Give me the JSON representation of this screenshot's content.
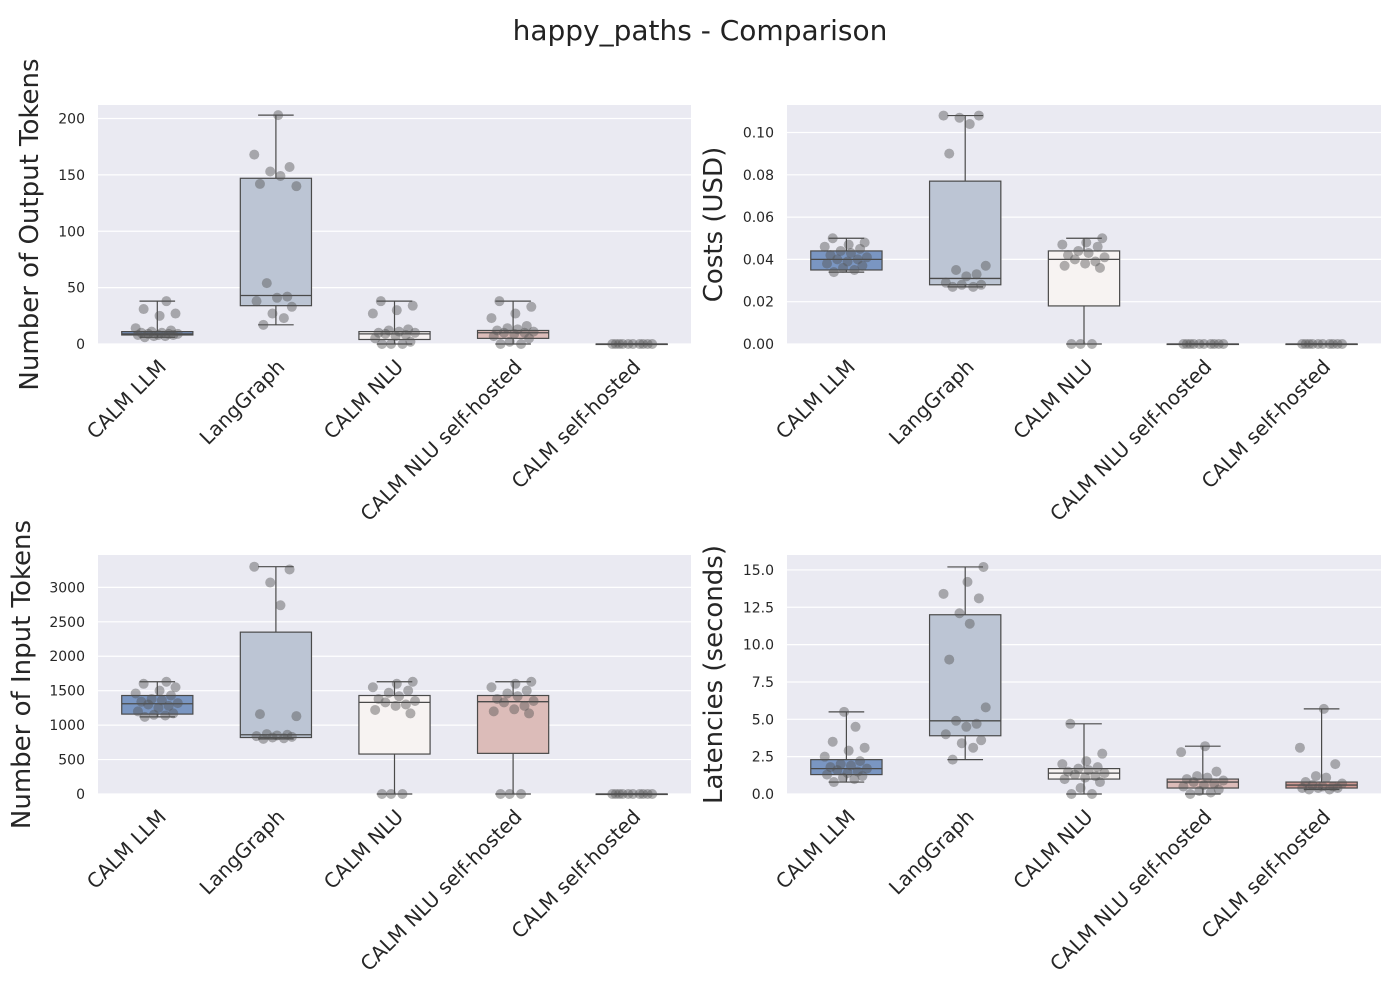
{
  "figure_title": "happy_paths - Comparison",
  "chart_data": [
    {
      "type": "box",
      "ylabel": "Number of Output Tokens",
      "ylim": [
        0,
        212
      ],
      "yticks": [
        0,
        50,
        100,
        150,
        200
      ],
      "categories": [
        "CALM LLM",
        "LangGraph",
        "CALM NLU",
        "CALM NLU self-hosted",
        "CALM self-hosted"
      ],
      "colors": [
        "#7a96c2",
        "#bcc5d4",
        "#f7f3f2",
        "#dcbcb9",
        "#d19b95"
      ],
      "boxes": [
        {
          "whisker_low": 6,
          "q1": 8,
          "median": 9,
          "q3": 11,
          "whisker_high": 38
        },
        {
          "whisker_low": 17,
          "q1": 34,
          "median": 43,
          "q3": 147,
          "whisker_high": 203
        },
        {
          "whisker_low": 0,
          "q1": 4,
          "median": 9,
          "q3": 11,
          "whisker_high": 38
        },
        {
          "whisker_low": 0,
          "q1": 5,
          "median": 10,
          "q3": 12,
          "whisker_high": 38
        },
        {
          "whisker_low": 0,
          "q1": 0,
          "median": 0,
          "q3": 0,
          "whisker_high": 0
        }
      ],
      "points": [
        [
          6,
          7,
          7,
          8,
          8,
          8,
          9,
          9,
          9,
          10,
          10,
          11,
          12,
          14,
          25,
          27,
          31,
          38
        ],
        [
          17,
          23,
          27,
          33,
          38,
          41,
          42,
          54,
          140,
          142,
          149,
          153,
          157,
          168,
          203
        ],
        [
          0,
          0,
          0,
          2,
          5,
          7,
          8,
          9,
          10,
          10,
          11,
          12,
          13,
          27,
          30,
          34,
          38
        ],
        [
          0,
          0,
          2,
          5,
          7,
          9,
          10,
          10,
          11,
          12,
          13,
          14,
          16,
          23,
          27,
          33,
          38
        ],
        [
          0,
          0,
          0,
          0,
          0,
          0,
          0,
          0,
          0,
          0
        ]
      ]
    },
    {
      "type": "box",
      "ylabel": "Costs (USD)",
      "ylim": [
        0,
        0.113
      ],
      "yticks": [
        0.0,
        0.02,
        0.04,
        0.06,
        0.08,
        0.1
      ],
      "ytick_labels": [
        "0.00",
        "0.02",
        "0.04",
        "0.06",
        "0.08",
        "0.10"
      ],
      "categories": [
        "CALM LLM",
        "LangGraph",
        "CALM NLU",
        "CALM NLU self-hosted",
        "CALM self-hosted"
      ],
      "colors": [
        "#7a96c2",
        "#bcc5d4",
        "#f7f3f2",
        "#dcbcb9",
        "#d19b95"
      ],
      "boxes": [
        {
          "whisker_low": 0.034,
          "q1": 0.035,
          "median": 0.04,
          "q3": 0.044,
          "whisker_high": 0.05
        },
        {
          "whisker_low": 0.027,
          "q1": 0.028,
          "median": 0.031,
          "q3": 0.077,
          "whisker_high": 0.108
        },
        {
          "whisker_low": 0.0,
          "q1": 0.018,
          "median": 0.04,
          "q3": 0.044,
          "whisker_high": 0.05
        },
        {
          "whisker_low": 0.0,
          "q1": 0.0,
          "median": 0.0,
          "q3": 0.0,
          "whisker_high": 0.0
        },
        {
          "whisker_low": 0.0,
          "q1": 0.0,
          "median": 0.0,
          "q3": 0.0,
          "whisker_high": 0.0
        }
      ],
      "points": [
        [
          0.034,
          0.035,
          0.036,
          0.037,
          0.038,
          0.039,
          0.04,
          0.04,
          0.041,
          0.042,
          0.043,
          0.044,
          0.045,
          0.046,
          0.047,
          0.048,
          0.05
        ],
        [
          0.027,
          0.027,
          0.028,
          0.028,
          0.029,
          0.032,
          0.033,
          0.035,
          0.037,
          0.09,
          0.104,
          0.107,
          0.108,
          0.108
        ],
        [
          0.0,
          0.0,
          0.0,
          0.036,
          0.037,
          0.038,
          0.039,
          0.04,
          0.041,
          0.042,
          0.043,
          0.044,
          0.046,
          0.047,
          0.048,
          0.05
        ],
        [
          0.0,
          0.0,
          0.0,
          0.0,
          0.0,
          0.0,
          0.0,
          0.0,
          0.0,
          0.0
        ],
        [
          0.0,
          0.0,
          0.0,
          0.0,
          0.0,
          0.0,
          0.0,
          0.0,
          0.0,
          0.0
        ]
      ]
    },
    {
      "type": "box",
      "ylabel": "Number of Input Tokens",
      "ylim": [
        0,
        3470
      ],
      "yticks": [
        0,
        500,
        1000,
        1500,
        2000,
        2500,
        3000
      ],
      "categories": [
        "CALM LLM",
        "LangGraph",
        "CALM NLU",
        "CALM NLU self-hosted",
        "CALM self-hosted"
      ],
      "colors": [
        "#7a96c2",
        "#bcc5d4",
        "#f7f3f2",
        "#dcbcb9",
        "#d19b95"
      ],
      "boxes": [
        {
          "whisker_low": 1120,
          "q1": 1160,
          "median": 1310,
          "q3": 1430,
          "whisker_high": 1630
        },
        {
          "whisker_low": 800,
          "q1": 820,
          "median": 860,
          "q3": 2350,
          "whisker_high": 3300
        },
        {
          "whisker_low": 0,
          "q1": 580,
          "median": 1330,
          "q3": 1430,
          "whisker_high": 1630
        },
        {
          "whisker_low": 0,
          "q1": 590,
          "median": 1340,
          "q3": 1430,
          "whisker_high": 1630
        },
        {
          "whisker_low": 0,
          "q1": 0,
          "median": 0,
          "q3": 0,
          "whisker_high": 0
        }
      ],
      "points": [
        [
          1120,
          1140,
          1150,
          1170,
          1200,
          1250,
          1280,
          1300,
          1320,
          1340,
          1360,
          1380,
          1430,
          1460,
          1500,
          1550,
          1600,
          1630
        ],
        [
          800,
          810,
          820,
          830,
          840,
          850,
          860,
          870,
          1130,
          1160,
          2740,
          3070,
          3260,
          3300
        ],
        [
          0,
          0,
          0,
          1170,
          1220,
          1280,
          1300,
          1330,
          1350,
          1380,
          1420,
          1470,
          1500,
          1550,
          1600,
          1630
        ],
        [
          0,
          0,
          0,
          1170,
          1200,
          1230,
          1280,
          1330,
          1350,
          1380,
          1420,
          1460,
          1500,
          1550,
          1600,
          1630
        ],
        [
          0,
          0,
          0,
          0,
          0,
          0,
          0,
          0,
          0,
          0
        ]
      ]
    },
    {
      "type": "box",
      "ylabel": "Latencies (seconds)",
      "ylim": [
        0,
        16.0
      ],
      "yticks": [
        0.0,
        2.5,
        5.0,
        7.5,
        10.0,
        12.5,
        15.0
      ],
      "ytick_labels": [
        "0.0",
        "2.5",
        "5.0",
        "7.5",
        "10.0",
        "12.5",
        "15.0"
      ],
      "categories": [
        "CALM LLM",
        "LangGraph",
        "CALM NLU",
        "CALM NLU self-hosted",
        "CALM self-hosted"
      ],
      "colors": [
        "#7a96c2",
        "#bcc5d4",
        "#f7f3f2",
        "#dcbcb9",
        "#d19b95"
      ],
      "boxes": [
        {
          "whisker_low": 0.8,
          "q1": 1.3,
          "median": 1.7,
          "q3": 2.3,
          "whisker_high": 5.5
        },
        {
          "whisker_low": 2.3,
          "q1": 3.9,
          "median": 4.9,
          "q3": 12.0,
          "whisker_high": 15.2
        },
        {
          "whisker_low": 0.0,
          "q1": 1.0,
          "median": 1.4,
          "q3": 1.7,
          "whisker_high": 4.7
        },
        {
          "whisker_low": 0.0,
          "q1": 0.4,
          "median": 0.8,
          "q3": 1.0,
          "whisker_high": 3.2
        },
        {
          "whisker_low": 0.3,
          "q1": 0.4,
          "median": 0.6,
          "q3": 0.8,
          "whisker_high": 5.7
        }
      ],
      "points": [
        [
          0.8,
          1.0,
          1.1,
          1.2,
          1.3,
          1.4,
          1.5,
          1.6,
          1.7,
          1.8,
          1.9,
          2.0,
          2.2,
          2.5,
          2.9,
          3.1,
          3.5,
          4.5,
          5.5
        ],
        [
          2.3,
          3.1,
          3.4,
          3.6,
          4.0,
          4.5,
          4.7,
          4.9,
          5.8,
          9.0,
          11.4,
          12.1,
          13.1,
          13.4,
          14.2,
          15.2
        ],
        [
          0.0,
          0.0,
          0.4,
          0.8,
          1.0,
          1.1,
          1.2,
          1.3,
          1.4,
          1.5,
          1.6,
          1.7,
          1.8,
          2.0,
          2.2,
          2.7,
          4.7
        ],
        [
          0.0,
          0.1,
          0.2,
          0.3,
          0.5,
          0.6,
          0.7,
          0.8,
          0.9,
          1.0,
          1.1,
          1.2,
          1.5,
          2.8,
          3.2
        ],
        [
          0.3,
          0.3,
          0.4,
          0.4,
          0.4,
          0.5,
          0.5,
          0.6,
          0.7,
          0.8,
          1.1,
          1.2,
          2.0,
          3.1,
          5.7
        ]
      ]
    }
  ]
}
